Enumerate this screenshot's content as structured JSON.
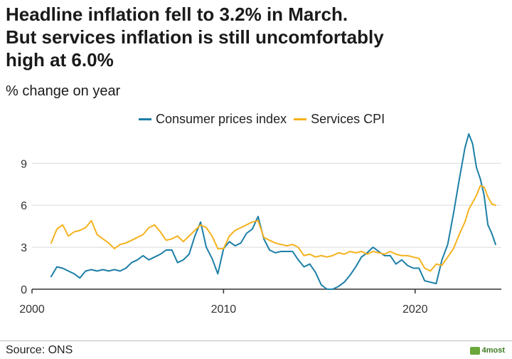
{
  "header": {
    "title_line1": "Headline inflation fell to 3.2% in March.",
    "title_line2": "But services inflation is still uncomfortably",
    "title_line3": "high at 6.0%",
    "subtitle": "% change on year"
  },
  "footer": {
    "source": "Source: ONS",
    "brand": "4most"
  },
  "colors": {
    "cpi": "#1c7fa6",
    "services": "#f5b21e",
    "grid": "#d9d9d9",
    "axis": "#333333"
  },
  "chart_data": {
    "type": "line",
    "title": "Headline inflation fell to 3.2% in March. But services inflation is still uncomfortably high at 6.0%",
    "ylabel": "% change on year",
    "xlabel": "",
    "xlim": [
      2000,
      2024.5
    ],
    "ylim": [
      0,
      11
    ],
    "yticks": [
      0,
      3,
      6,
      9
    ],
    "xticks": [
      2000,
      2010,
      2020
    ],
    "grid": true,
    "legend_position": "top",
    "series": [
      {
        "name": "Consumer prices index",
        "color_key": "cpi",
        "x": [
          2001.0,
          2001.3,
          2001.6,
          2001.9,
          2002.2,
          2002.5,
          2002.8,
          2003.1,
          2003.4,
          2003.7,
          2004.0,
          2004.3,
          2004.6,
          2004.9,
          2005.2,
          2005.5,
          2005.8,
          2006.1,
          2006.4,
          2006.7,
          2007.0,
          2007.3,
          2007.6,
          2007.9,
          2008.2,
          2008.5,
          2008.8,
          2009.1,
          2009.4,
          2009.7,
          2010.0,
          2010.3,
          2010.6,
          2010.9,
          2011.2,
          2011.5,
          2011.8,
          2012.1,
          2012.4,
          2012.7,
          2013.0,
          2013.3,
          2013.6,
          2013.9,
          2014.2,
          2014.5,
          2014.8,
          2015.1,
          2015.4,
          2015.7,
          2016.0,
          2016.3,
          2016.6,
          2016.9,
          2017.2,
          2017.5,
          2017.8,
          2018.1,
          2018.4,
          2018.7,
          2019.0,
          2019.3,
          2019.6,
          2019.9,
          2020.2,
          2020.5,
          2020.8,
          2021.1,
          2021.4,
          2021.7,
          2022.0,
          2022.3,
          2022.6,
          2022.8,
          2023.0,
          2023.2,
          2023.4,
          2023.6,
          2023.8,
          2024.0,
          2024.2
        ],
        "values": [
          0.9,
          1.6,
          1.5,
          1.3,
          1.1,
          0.8,
          1.3,
          1.4,
          1.3,
          1.4,
          1.3,
          1.4,
          1.3,
          1.5,
          1.9,
          2.1,
          2.4,
          2.1,
          2.3,
          2.5,
          2.8,
          2.8,
          1.9,
          2.1,
          2.5,
          3.8,
          4.8,
          3.0,
          2.2,
          1.1,
          2.9,
          3.4,
          3.1,
          3.3,
          4.0,
          4.3,
          5.2,
          3.6,
          2.8,
          2.6,
          2.7,
          2.7,
          2.7,
          2.1,
          1.6,
          1.8,
          1.2,
          0.3,
          0.0,
          0.0,
          0.2,
          0.5,
          1.0,
          1.6,
          2.3,
          2.6,
          3.0,
          2.7,
          2.4,
          2.4,
          1.8,
          2.1,
          1.7,
          1.5,
          1.5,
          0.6,
          0.5,
          0.4,
          2.1,
          3.2,
          5.4,
          7.8,
          10.1,
          11.1,
          10.4,
          8.7,
          7.9,
          6.7,
          4.6,
          4.0,
          3.2
        ]
      },
      {
        "name": "Services CPI",
        "color_key": "services",
        "x": [
          2001.0,
          2001.3,
          2001.6,
          2001.9,
          2002.2,
          2002.5,
          2002.8,
          2003.1,
          2003.4,
          2003.7,
          2004.0,
          2004.3,
          2004.6,
          2004.9,
          2005.2,
          2005.5,
          2005.8,
          2006.1,
          2006.4,
          2006.7,
          2007.0,
          2007.3,
          2007.6,
          2007.9,
          2008.2,
          2008.5,
          2008.8,
          2009.1,
          2009.4,
          2009.7,
          2010.0,
          2010.3,
          2010.6,
          2010.9,
          2011.2,
          2011.5,
          2011.8,
          2012.1,
          2012.4,
          2012.7,
          2013.0,
          2013.3,
          2013.6,
          2013.9,
          2014.2,
          2014.5,
          2014.8,
          2015.1,
          2015.4,
          2015.7,
          2016.0,
          2016.3,
          2016.6,
          2016.9,
          2017.2,
          2017.5,
          2017.8,
          2018.1,
          2018.4,
          2018.7,
          2019.0,
          2019.3,
          2019.6,
          2019.9,
          2020.2,
          2020.5,
          2020.8,
          2021.1,
          2021.4,
          2021.7,
          2022.0,
          2022.3,
          2022.6,
          2022.8,
          2023.0,
          2023.2,
          2023.4,
          2023.6,
          2023.8,
          2024.0,
          2024.2
        ],
        "values": [
          3.3,
          4.3,
          4.6,
          3.8,
          4.1,
          4.2,
          4.4,
          4.9,
          3.9,
          3.6,
          3.3,
          2.9,
          3.2,
          3.3,
          3.5,
          3.7,
          3.9,
          4.4,
          4.6,
          4.1,
          3.5,
          3.6,
          3.8,
          3.4,
          3.8,
          4.2,
          4.6,
          4.4,
          3.8,
          2.9,
          2.9,
          3.8,
          4.2,
          4.4,
          4.6,
          4.8,
          4.9,
          3.7,
          3.5,
          3.3,
          3.2,
          3.1,
          3.2,
          3.0,
          2.4,
          2.5,
          2.3,
          2.4,
          2.3,
          2.4,
          2.6,
          2.5,
          2.7,
          2.6,
          2.7,
          2.5,
          2.7,
          2.6,
          2.5,
          2.7,
          2.5,
          2.4,
          2.4,
          2.3,
          2.2,
          1.5,
          1.3,
          1.8,
          1.7,
          2.3,
          2.9,
          3.9,
          4.8,
          5.7,
          6.2,
          6.7,
          7.4,
          7.3,
          6.6,
          6.1,
          6.0
        ]
      }
    ]
  }
}
